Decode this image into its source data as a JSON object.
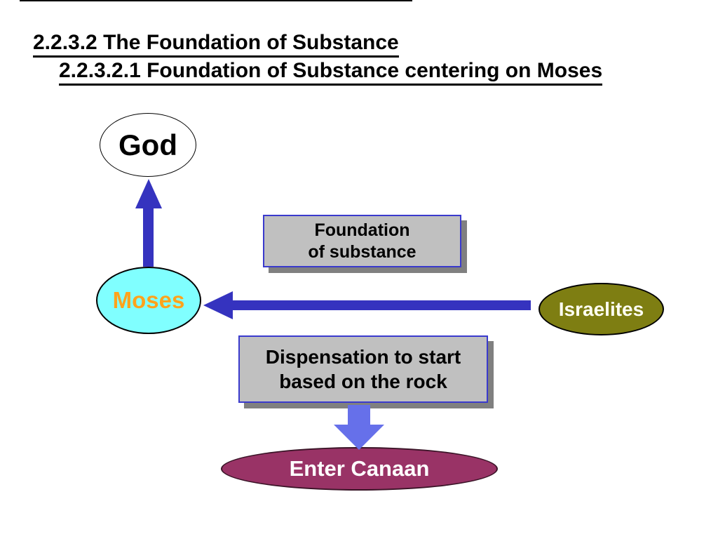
{
  "slide": {
    "background": "#FFFFFF",
    "title_line1": "2.2.3.2 The Foundation of Substance",
    "title_line2": "2.2.3.2.1 Foundation of Substance centering on Moses"
  },
  "diagram": {
    "nodes": {
      "god": {
        "label": "God",
        "shape": "ellipse",
        "fill": "#FFFFFF",
        "border": "#000000",
        "text_color": "#000000"
      },
      "moses": {
        "label": "Moses",
        "shape": "ellipse",
        "fill": "#80FFFF",
        "border": "#000000",
        "text_color": "#FFA31C"
      },
      "israelites": {
        "label": "Israelites",
        "shape": "ellipse",
        "fill": "#7E7E12",
        "border": "#000000",
        "text_color": "#FFFFF2"
      },
      "enter_canaan": {
        "label": "Enter Canaan",
        "shape": "ellipse",
        "fill": "#993366",
        "border": "#3A1427",
        "text_color": "#FFFFFF"
      }
    },
    "boxes": {
      "foundation": {
        "line1": "Foundation",
        "line2": "of substance",
        "fill": "#C0C0C0",
        "border": "#3A3ACD",
        "shadow": "#808080",
        "text_color": "#000000"
      },
      "dispensation": {
        "line1": "Dispensation to start",
        "line2": "based on the rock",
        "fill": "#C0C0C0",
        "border": "#3A3ACD",
        "shadow": "#808080",
        "text_color": "#000000"
      }
    },
    "arrows": [
      {
        "name": "moses-to-god",
        "direction": "up",
        "color": "#3533BF"
      },
      {
        "name": "israelites-to-moses",
        "direction": "left",
        "color": "#3533BF"
      },
      {
        "name": "dispensation-to-enter-canaan",
        "direction": "down",
        "color": "#6670EA"
      }
    ]
  }
}
